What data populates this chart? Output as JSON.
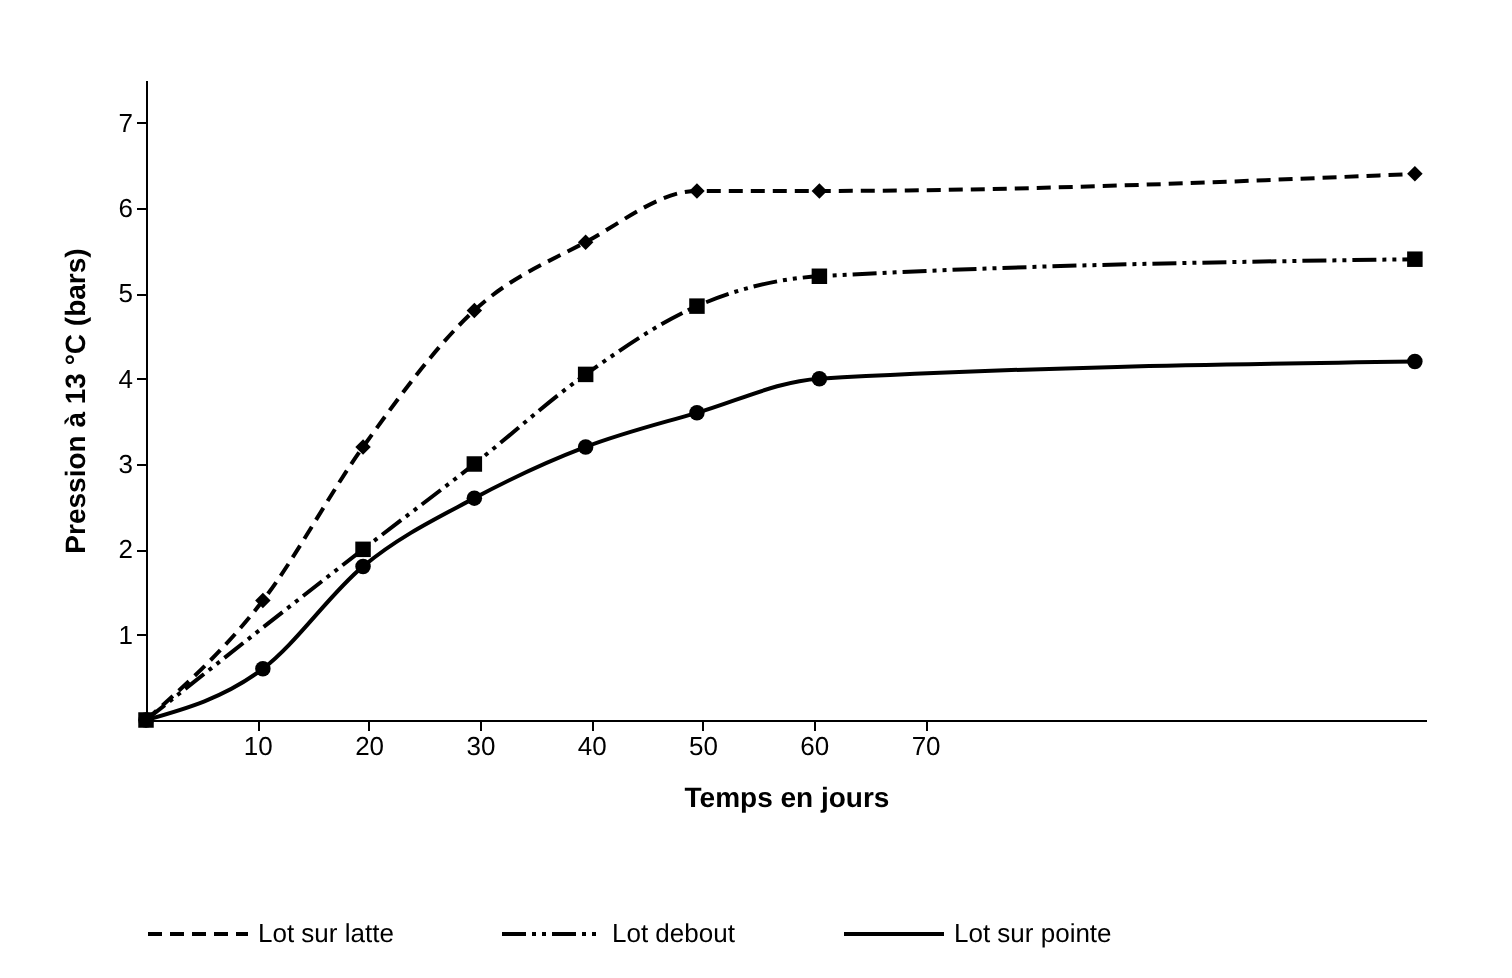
{
  "chart_data": {
    "type": "line",
    "xlabel": "Temps en jours",
    "ylabel": "Pression à 13 °C (bars)",
    "xlim": [
      0,
      115
    ],
    "xticks": [
      10,
      20,
      30,
      40,
      50,
      60,
      70
    ],
    "ylim": [
      0,
      7.5
    ],
    "yticks": [
      1,
      2,
      3,
      4,
      5,
      6,
      7
    ],
    "grid": false,
    "legend": "bottom",
    "series": [
      {
        "name": "Lot sur latte",
        "color": "#000000",
        "marker": "diamond",
        "line_style": "dashed",
        "x": [
          0,
          10.5,
          19.5,
          29.5,
          39.5,
          49.5,
          60.5,
          114
        ],
        "values": [
          0,
          1.4,
          3.2,
          4.8,
          5.6,
          6.2,
          6.2,
          6.4
        ]
      },
      {
        "name": "Lot debout",
        "color": "#000000",
        "marker": "square",
        "line_style": "dashdotdot",
        "x": [
          0,
          19.5,
          29.5,
          39.5,
          49.5,
          60.5,
          114
        ],
        "values": [
          0,
          2.0,
          3.0,
          4.05,
          4.85,
          5.2,
          5.4
        ]
      },
      {
        "name": "Lot sur pointe",
        "color": "#000000",
        "marker": "circle",
        "line_style": "solid",
        "x": [
          0,
          10.5,
          19.5,
          29.5,
          39.5,
          49.5,
          60.5,
          114
        ],
        "values": [
          0,
          0.6,
          1.8,
          2.6,
          3.2,
          3.6,
          4.0,
          4.2
        ]
      }
    ]
  }
}
